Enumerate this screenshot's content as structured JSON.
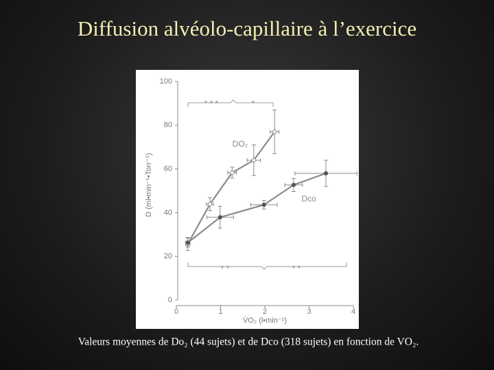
{
  "chart_data": {
    "type": "line",
    "title": "Diffusion alvéolo-capillaire à l’exercice",
    "caption": "Valeurs moyennes de Do₂ (44 sujets) et de Dco (318 sujets) en fonction de VO₂.",
    "xlabel": "V̇O₂ (l•min⁻¹)",
    "ylabel": "D (ml•min⁻¹•Torr⁻¹)",
    "xlim": [
      0,
      4
    ],
    "xticks": [
      0,
      1,
      2,
      3,
      4
    ],
    "ylim": [
      0,
      100
    ],
    "yticks": [
      0,
      20,
      40,
      60,
      80,
      100
    ],
    "annotations": [
      "* * *",
      "*",
      "* *",
      "* *"
    ],
    "series": [
      {
        "name": "DO₂",
        "color": "#8a8a8a",
        "marker": "diamond",
        "x": [
          0.26,
          0.76,
          1.26,
          1.75,
          2.22
        ],
        "values": [
          25.7,
          43.9,
          58.3,
          64,
          77
        ],
        "x_err": [
          0.05,
          0.08,
          0.1,
          0.15,
          0.1
        ],
        "y_err": [
          3,
          3,
          2.5,
          7,
          10
        ]
      },
      {
        "name": "Dco",
        "color": "#8a8a8a",
        "marker": "circle",
        "x": [
          0.26,
          0.99,
          1.98,
          2.65,
          3.38
        ],
        "values": [
          26.3,
          37.9,
          43.6,
          52.7,
          58
        ],
        "x_err": [
          0.05,
          0.3,
          0.3,
          0.2,
          0.7
        ],
        "y_err": [
          2,
          5,
          2,
          3,
          6
        ]
      }
    ]
  }
}
